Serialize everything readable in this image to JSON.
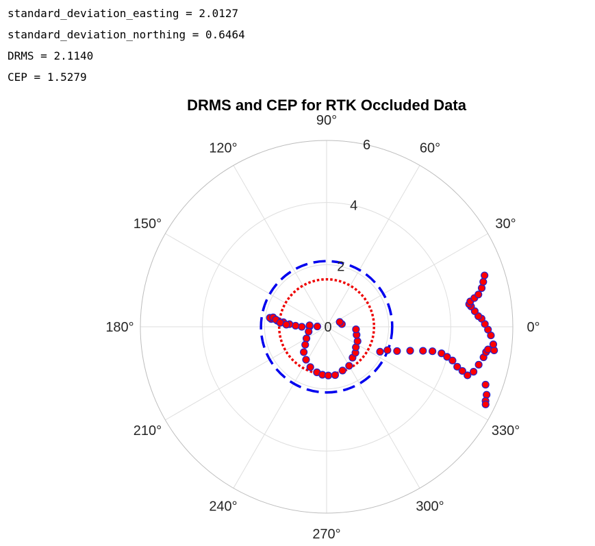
{
  "stats": [
    {
      "label": "standard_deviation_easting",
      "value": "2.0127"
    },
    {
      "label": "standard_deviation_northing",
      "value": "0.6464"
    },
    {
      "label": "DRMS",
      "value": "2.1140"
    },
    {
      "label": "CEP",
      "value": "1.5279"
    }
  ],
  "chart_data": {
    "type": "scatter",
    "projection": "polar",
    "title": "DRMS and CEP for RTK Occluded Data",
    "theta_ticks": [
      "0°",
      "30°",
      "60°",
      "90°",
      "120°",
      "150°",
      "180°",
      "210°",
      "240°",
      "270°",
      "300°",
      "330°"
    ],
    "theta_tick_degrees": [
      0,
      30,
      60,
      90,
      120,
      150,
      180,
      210,
      240,
      270,
      300,
      330
    ],
    "r_ticks": [
      "0",
      "2",
      "4",
      "6"
    ],
    "rlim": [
      0,
      6
    ],
    "grid": true,
    "circles": [
      {
        "name": "DRMS",
        "radius": 2.114,
        "color": "#0000ee",
        "style": "dashed"
      },
      {
        "name": "CEP",
        "radius": 1.5279,
        "color": "#ee0000",
        "style": "dotted"
      }
    ],
    "marker": {
      "face": "#ff0000",
      "edge": "#2222cc"
    },
    "points_theta_r": [
      [
        178,
        0.3
      ],
      [
        179,
        0.55
      ],
      [
        180,
        0.8
      ],
      [
        178,
        1.0
      ],
      [
        176,
        1.2
      ],
      [
        174,
        1.4
      ],
      [
        173,
        1.6
      ],
      [
        172,
        1.8
      ],
      [
        171,
        1.85
      ],
      [
        170,
        1.75
      ],
      [
        172,
        1.65
      ],
      [
        175,
        1.5
      ],
      [
        177,
        1.3
      ],
      [
        175,
        0.55
      ],
      [
        195,
        0.6
      ],
      [
        210,
        0.75
      ],
      [
        220,
        0.9
      ],
      [
        228,
        1.1
      ],
      [
        238,
        1.25
      ],
      [
        248,
        1.4
      ],
      [
        258,
        1.5
      ],
      [
        265,
        1.55
      ],
      [
        272,
        1.57
      ],
      [
        280,
        1.58
      ],
      [
        290,
        1.5
      ],
      [
        300,
        1.45
      ],
      [
        310,
        1.3
      ],
      [
        318,
        1.25
      ],
      [
        325,
        1.15
      ],
      [
        335,
        1.1
      ],
      [
        345,
        1.0
      ],
      [
        355,
        0.95
      ],
      [
        10,
        0.5
      ],
      [
        20,
        0.45
      ],
      [
        335,
        1.9
      ],
      [
        339,
        2.1
      ],
      [
        341,
        2.4
      ],
      [
        344,
        2.8
      ],
      [
        346,
        3.2
      ],
      [
        347,
        3.5
      ],
      [
        347,
        3.8
      ],
      [
        346,
        4.0
      ],
      [
        345,
        4.2
      ],
      [
        343,
        4.4
      ],
      [
        342,
        4.6
      ],
      [
        341,
        4.8
      ],
      [
        343,
        4.95
      ],
      [
        346,
        5.05
      ],
      [
        349,
        5.15
      ],
      [
        351,
        5.2
      ],
      [
        352,
        5.25
      ],
      [
        340,
        5.45
      ],
      [
        337,
        5.6
      ],
      [
        335,
        5.65
      ],
      [
        334,
        5.7
      ],
      [
        352,
        5.45
      ],
      [
        354,
        5.4
      ],
      [
        357,
        5.3
      ],
      [
        359,
        5.2
      ],
      [
        1,
        5.1
      ],
      [
        3,
        5.0
      ],
      [
        4,
        4.9
      ],
      [
        6,
        4.8
      ],
      [
        8,
        4.7
      ],
      [
        9,
        4.65
      ],
      [
        10,
        4.7
      ],
      [
        11,
        4.85
      ],
      [
        12,
        5.0
      ],
      [
        14,
        5.15
      ],
      [
        16,
        5.25
      ],
      [
        18,
        5.35
      ]
    ]
  }
}
